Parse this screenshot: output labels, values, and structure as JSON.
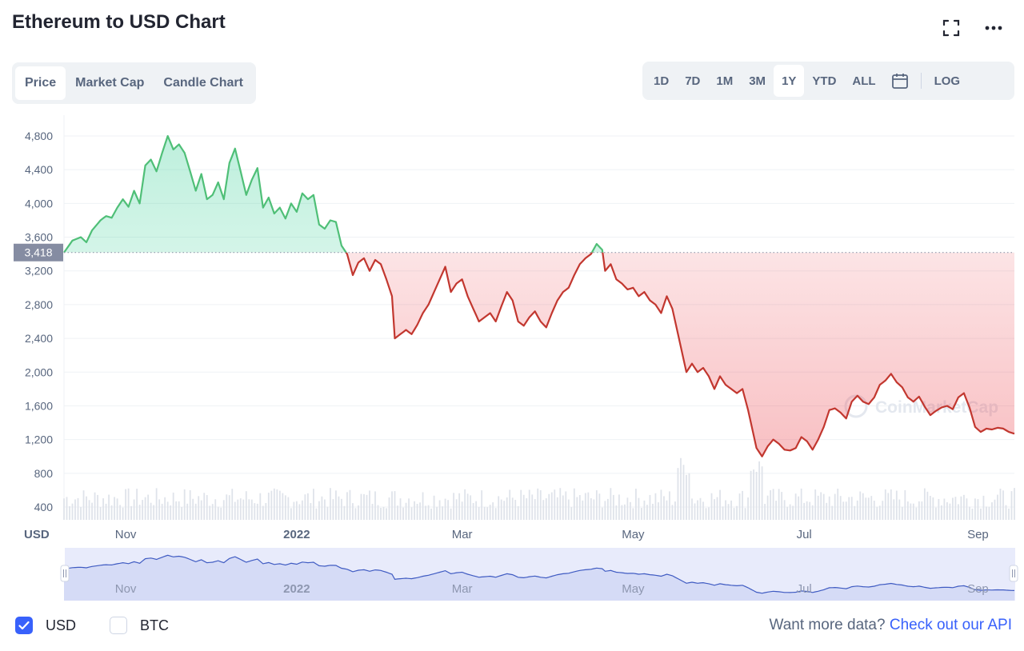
{
  "header": {
    "title": "Ethereum to USD Chart",
    "fullscreen_icon": "fullscreen-icon",
    "more_icon": "more-horizontal-icon"
  },
  "view_tabs": [
    {
      "label": "Price",
      "active": true
    },
    {
      "label": "Market Cap",
      "active": false
    },
    {
      "label": "Candle Chart",
      "active": false
    }
  ],
  "range_tabs": [
    {
      "label": "1D",
      "active": false
    },
    {
      "label": "7D",
      "active": false
    },
    {
      "label": "1M",
      "active": false
    },
    {
      "label": "3M",
      "active": false
    },
    {
      "label": "1Y",
      "active": true
    },
    {
      "label": "YTD",
      "active": false
    },
    {
      "label": "ALL",
      "active": false
    }
  ],
  "calendar_icon": "calendar-icon",
  "log_label": "LOG",
  "footer": {
    "usd_label": "USD",
    "usd_checked": true,
    "btc_label": "BTC",
    "btc_checked": false,
    "api_text": "Want more data?",
    "api_link": "Check out our API"
  },
  "colors": {
    "up": "#16c784",
    "up_line": "#4fbf77",
    "down": "#ea3943",
    "down_line": "#c2372f",
    "accent": "#3861fb",
    "navigator_fill": "#e8ebfb"
  },
  "chart_data": {
    "type": "line",
    "reference_value": 3418,
    "reference_label": "3,418",
    "currency_label": "USD",
    "ylim": [
      250,
      5000
    ],
    "y_ticks": [
      400,
      800,
      1200,
      1600,
      2000,
      2400,
      2800,
      3200,
      3600,
      4000,
      4400,
      4800
    ],
    "y_tick_labels": [
      "400",
      "800",
      "1,200",
      "1,600",
      "2,000",
      "2,400",
      "2,800",
      "3,200",
      "3,600",
      "4,000",
      "4,400",
      "4,800"
    ],
    "x_ticks": [
      {
        "label": "Nov",
        "day": 22,
        "bold": false
      },
      {
        "label": "2022",
        "day": 83,
        "bold": true
      },
      {
        "label": "Mar",
        "day": 142,
        "bold": false
      },
      {
        "label": "May",
        "day": 203,
        "bold": false
      },
      {
        "label": "Jul",
        "day": 264,
        "bold": false
      },
      {
        "label": "Sep",
        "day": 326,
        "bold": false
      }
    ],
    "navigator_labels": [
      "Nov",
      "2022",
      "Mar",
      "May",
      "Jul",
      "Sep"
    ],
    "watermark": "CoinMarketCap",
    "price_anchors": [
      [
        0,
        3418
      ],
      [
        3,
        3560
      ],
      [
        6,
        3600
      ],
      [
        8,
        3540
      ],
      [
        10,
        3680
      ],
      [
        13,
        3800
      ],
      [
        15,
        3850
      ],
      [
        17,
        3830
      ],
      [
        19,
        3950
      ],
      [
        21,
        4050
      ],
      [
        23,
        3960
      ],
      [
        25,
        4150
      ],
      [
        27,
        4000
      ],
      [
        29,
        4450
      ],
      [
        31,
        4520
      ],
      [
        33,
        4380
      ],
      [
        35,
        4600
      ],
      [
        37,
        4800
      ],
      [
        39,
        4640
      ],
      [
        41,
        4700
      ],
      [
        43,
        4600
      ],
      [
        45,
        4380
      ],
      [
        47,
        4150
      ],
      [
        49,
        4350
      ],
      [
        51,
        4050
      ],
      [
        53,
        4100
      ],
      [
        55,
        4250
      ],
      [
        57,
        4050
      ],
      [
        59,
        4480
      ],
      [
        61,
        4650
      ],
      [
        63,
        4380
      ],
      [
        65,
        4100
      ],
      [
        67,
        4280
      ],
      [
        69,
        4420
      ],
      [
        71,
        3950
      ],
      [
        73,
        4070
      ],
      [
        75,
        3880
      ],
      [
        77,
        3950
      ],
      [
        79,
        3820
      ],
      [
        81,
        4000
      ],
      [
        83,
        3900
      ],
      [
        85,
        4120
      ],
      [
        87,
        4050
      ],
      [
        89,
        4100
      ],
      [
        91,
        3750
      ],
      [
        93,
        3700
      ],
      [
        95,
        3800
      ],
      [
        97,
        3780
      ],
      [
        99,
        3500
      ],
      [
        101,
        3400
      ],
      [
        103,
        3150
      ],
      [
        105,
        3300
      ],
      [
        107,
        3350
      ],
      [
        109,
        3200
      ],
      [
        111,
        3330
      ],
      [
        113,
        3280
      ],
      [
        115,
        3100
      ],
      [
        117,
        2900
      ],
      [
        118,
        2400
      ],
      [
        120,
        2450
      ],
      [
        122,
        2500
      ],
      [
        124,
        2450
      ],
      [
        126,
        2560
      ],
      [
        128,
        2700
      ],
      [
        130,
        2800
      ],
      [
        132,
        2950
      ],
      [
        134,
        3100
      ],
      [
        136,
        3250
      ],
      [
        138,
        2950
      ],
      [
        140,
        3050
      ],
      [
        142,
        3100
      ],
      [
        144,
        2900
      ],
      [
        146,
        2750
      ],
      [
        148,
        2600
      ],
      [
        150,
        2650
      ],
      [
        152,
        2700
      ],
      [
        154,
        2600
      ],
      [
        156,
        2780
      ],
      [
        158,
        2950
      ],
      [
        160,
        2850
      ],
      [
        162,
        2600
      ],
      [
        164,
        2550
      ],
      [
        166,
        2650
      ],
      [
        168,
        2720
      ],
      [
        170,
        2600
      ],
      [
        172,
        2530
      ],
      [
        174,
        2700
      ],
      [
        176,
        2850
      ],
      [
        178,
        2950
      ],
      [
        180,
        3000
      ],
      [
        182,
        3150
      ],
      [
        184,
        3280
      ],
      [
        186,
        3350
      ],
      [
        188,
        3400
      ],
      [
        190,
        3520
      ],
      [
        192,
        3450
      ],
      [
        193,
        3200
      ],
      [
        195,
        3280
      ],
      [
        197,
        3100
      ],
      [
        199,
        3050
      ],
      [
        201,
        2980
      ],
      [
        203,
        3000
      ],
      [
        205,
        2900
      ],
      [
        207,
        2950
      ],
      [
        209,
        2850
      ],
      [
        211,
        2800
      ],
      [
        213,
        2700
      ],
      [
        215,
        2900
      ],
      [
        217,
        2750
      ],
      [
        219,
        2450
      ],
      [
        220,
        2300
      ],
      [
        222,
        2000
      ],
      [
        224,
        2100
      ],
      [
        226,
        2000
      ],
      [
        228,
        2050
      ],
      [
        230,
        1950
      ],
      [
        232,
        1800
      ],
      [
        234,
        1950
      ],
      [
        236,
        1850
      ],
      [
        238,
        1800
      ],
      [
        240,
        1750
      ],
      [
        242,
        1800
      ],
      [
        244,
        1550
      ],
      [
        246,
        1250
      ],
      [
        247,
        1100
      ],
      [
        249,
        1000
      ],
      [
        251,
        1120
      ],
      [
        253,
        1200
      ],
      [
        255,
        1150
      ],
      [
        257,
        1080
      ],
      [
        259,
        1070
      ],
      [
        261,
        1100
      ],
      [
        263,
        1230
      ],
      [
        265,
        1180
      ],
      [
        267,
        1080
      ],
      [
        269,
        1200
      ],
      [
        271,
        1350
      ],
      [
        273,
        1550
      ],
      [
        275,
        1570
      ],
      [
        277,
        1520
      ],
      [
        279,
        1450
      ],
      [
        281,
        1650
      ],
      [
        283,
        1720
      ],
      [
        285,
        1650
      ],
      [
        287,
        1620
      ],
      [
        289,
        1700
      ],
      [
        291,
        1850
      ],
      [
        293,
        1900
      ],
      [
        295,
        1980
      ],
      [
        297,
        1880
      ],
      [
        299,
        1820
      ],
      [
        301,
        1700
      ],
      [
        303,
        1650
      ],
      [
        305,
        1710
      ],
      [
        307,
        1590
      ],
      [
        309,
        1490
      ],
      [
        311,
        1540
      ],
      [
        313,
        1580
      ],
      [
        315,
        1600
      ],
      [
        317,
        1560
      ],
      [
        319,
        1700
      ],
      [
        321,
        1750
      ],
      [
        323,
        1580
      ],
      [
        325,
        1350
      ],
      [
        327,
        1290
      ],
      [
        329,
        1330
      ],
      [
        331,
        1320
      ],
      [
        333,
        1340
      ],
      [
        335,
        1330
      ],
      [
        337,
        1290
      ],
      [
        339,
        1270
      ]
    ]
  }
}
